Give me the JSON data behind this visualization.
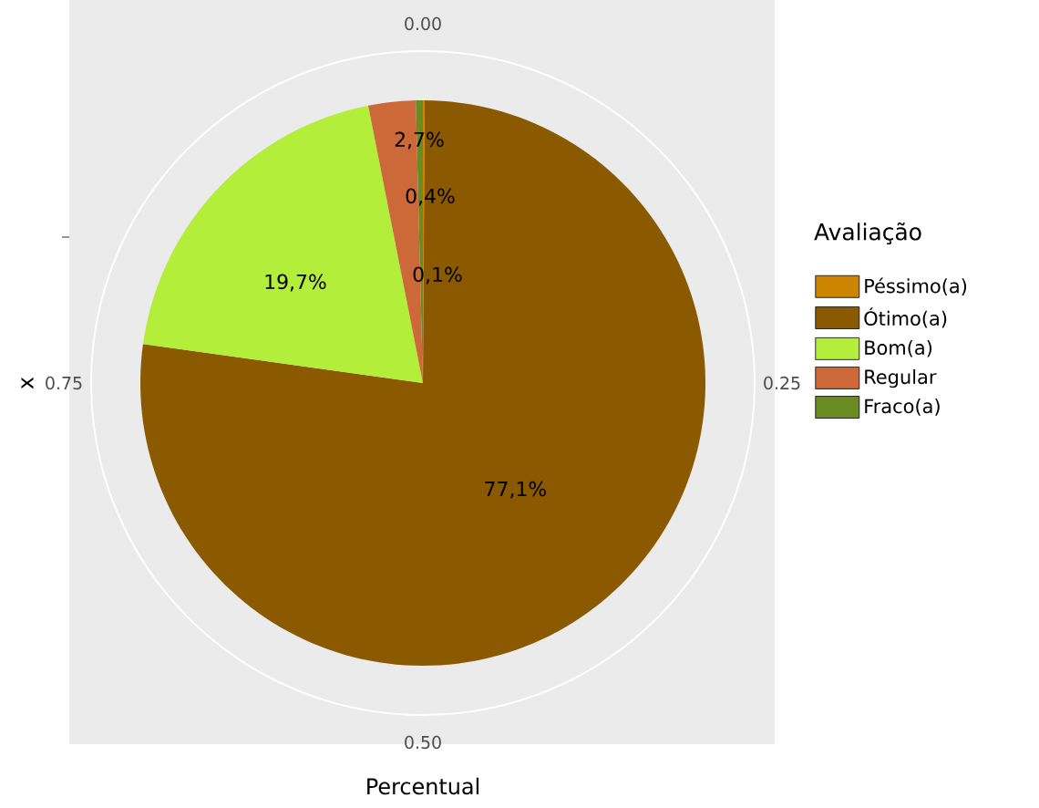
{
  "chart_data": {
    "type": "pie",
    "xlabel": "Percentual",
    "ylabel": "x",
    "legend_title": "Avaliação",
    "legend": "right",
    "categories": [
      "Péssimo(a)",
      "Ótimo(a)",
      "Bom(a)",
      "Regular",
      "Fraco(a)"
    ],
    "values": [
      0.1,
      77.1,
      19.7,
      2.7,
      0.4
    ],
    "colors": [
      "#cd8500",
      "#8b5a00",
      "#b3ee3a",
      "#cd6839",
      "#698b22"
    ],
    "value_labels": [
      "0,1%",
      "77,1%",
      "19,7%",
      "2,7%",
      "0,4%"
    ],
    "annotations": [
      "0.00",
      "0.25",
      "0.50",
      "0.75"
    ]
  }
}
